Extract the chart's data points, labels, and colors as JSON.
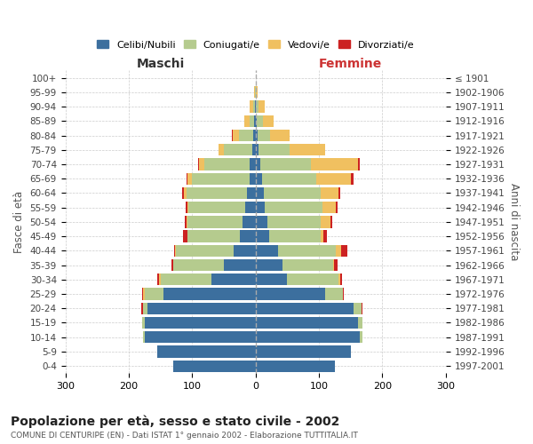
{
  "age_groups": [
    "0-4",
    "5-9",
    "10-14",
    "15-19",
    "20-24",
    "25-29",
    "30-34",
    "35-39",
    "40-44",
    "45-49",
    "50-54",
    "55-59",
    "60-64",
    "65-69",
    "70-74",
    "75-79",
    "80-84",
    "85-89",
    "90-94",
    "95-99",
    "100+"
  ],
  "birth_years": [
    "1997-2001",
    "1992-1996",
    "1987-1991",
    "1982-1986",
    "1977-1981",
    "1972-1976",
    "1967-1971",
    "1962-1966",
    "1957-1961",
    "1952-1956",
    "1947-1951",
    "1942-1946",
    "1937-1941",
    "1932-1936",
    "1927-1931",
    "1922-1926",
    "1917-1921",
    "1912-1916",
    "1907-1911",
    "1902-1906",
    "≤ 1901"
  ],
  "males_celibi": [
    130,
    155,
    175,
    175,
    170,
    145,
    70,
    50,
    35,
    25,
    20,
    16,
    14,
    10,
    9,
    5,
    4,
    2,
    1,
    0,
    0
  ],
  "males_coniugati": [
    0,
    0,
    2,
    4,
    8,
    30,
    80,
    80,
    90,
    82,
    88,
    90,
    95,
    90,
    72,
    45,
    22,
    8,
    3,
    1,
    0
  ],
  "males_vedovi": [
    0,
    0,
    0,
    0,
    0,
    2,
    2,
    0,
    2,
    0,
    1,
    2,
    4,
    8,
    8,
    8,
    10,
    8,
    5,
    1,
    0
  ],
  "males_divorziati": [
    0,
    0,
    0,
    0,
    2,
    2,
    3,
    2,
    2,
    8,
    2,
    2,
    3,
    1,
    1,
    0,
    1,
    0,
    0,
    0,
    0
  ],
  "females_nubili": [
    125,
    150,
    165,
    162,
    155,
    110,
    50,
    42,
    35,
    22,
    18,
    15,
    13,
    10,
    7,
    4,
    3,
    2,
    1,
    0,
    0
  ],
  "females_coniugate": [
    0,
    0,
    3,
    7,
    12,
    28,
    80,
    80,
    92,
    80,
    85,
    90,
    90,
    85,
    80,
    50,
    20,
    9,
    4,
    1,
    0
  ],
  "females_vedove": [
    0,
    0,
    0,
    0,
    0,
    0,
    3,
    2,
    8,
    5,
    15,
    22,
    28,
    55,
    75,
    55,
    30,
    18,
    10,
    2,
    0
  ],
  "females_divorziate": [
    0,
    0,
    0,
    0,
    1,
    1,
    3,
    5,
    10,
    5,
    3,
    2,
    3,
    5,
    3,
    0,
    1,
    0,
    0,
    0,
    0
  ],
  "colors_celibi": "#3c6f9e",
  "colors_coniugati": "#b5cb8e",
  "colors_vedovi": "#f0c060",
  "colors_divorziati": "#cc2222",
  "title": "Popolazione per età, sesso e stato civile - 2002",
  "subtitle": "COMUNE DI CENTURIPE (EN) - Dati ISTAT 1° gennaio 2002 - Elaborazione TUTTITALIA.IT",
  "label_maschi": "Maschi",
  "label_femmine": "Femmine",
  "ylabel_left": "Fasce di età",
  "ylabel_right": "Anni di nascita",
  "xlim": 300,
  "legend_labels": [
    "Celibi/Nubili",
    "Coniugati/e",
    "Vedovi/e",
    "Divorziati/e"
  ],
  "bg_color": "#ffffff",
  "grid_color": "#cccccc"
}
